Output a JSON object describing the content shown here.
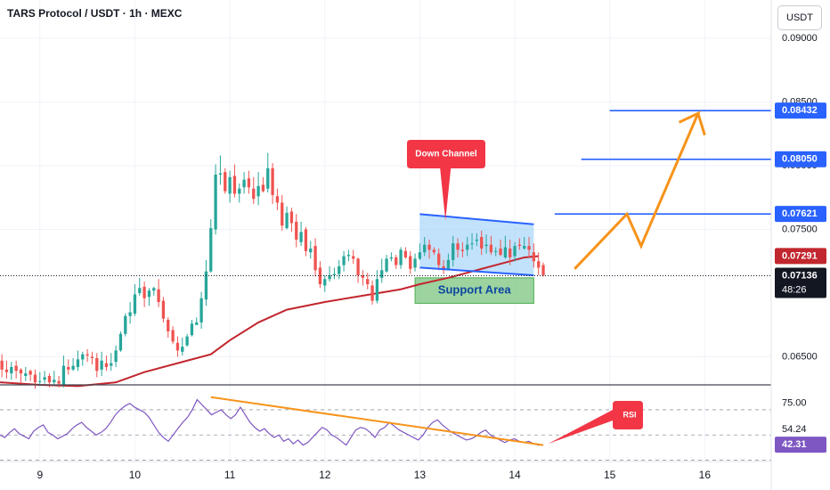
{
  "header": {
    "title": "TARS Protocol / USDT · 1h · MEXC",
    "currency_button": "USDT"
  },
  "colors": {
    "bull": "#26a69a",
    "bear": "#ef5350",
    "ma": "#c2262e",
    "level": "#2962ff",
    "arrow": "#f7931a",
    "rsi": "#7e57c2",
    "callout": "#f23645",
    "support_fill": "#7bc47f",
    "channel_fill": "#90caf9"
  },
  "chart_data": {
    "type": "candlestick",
    "title": "TARS Protocol / USDT · 1h · MEXC",
    "x_tick_labels": [
      "9",
      "10",
      "11",
      "12",
      "13",
      "14",
      "15",
      "16"
    ],
    "x_ticks": [
      9,
      10,
      11,
      12,
      13,
      14,
      15,
      16
    ],
    "xlim": [
      8.58,
      16.7
    ],
    "ylim": [
      0.0628,
      0.093
    ],
    "price_axis": {
      "tick_values": [
        0.065,
        0.075,
        0.08,
        0.085,
        0.09
      ],
      "tick_labels": [
        "0.06500",
        "0.07500",
        "0.08000",
        "0.08500",
        "0.09000"
      ]
    },
    "levels": [
      {
        "value": 0.07621,
        "label": "0.07621",
        "x_start": 14.42
      },
      {
        "value": 0.0805,
        "label": "0.08050",
        "x_start": 14.7
      },
      {
        "value": 0.08432,
        "label": "0.08432",
        "x_start": 15.0
      }
    ],
    "current_price": {
      "value": 0.07136,
      "label": "0.07136",
      "countdown": "48:26"
    },
    "ma": {
      "last_label": "0.07291",
      "last_value": 0.07291,
      "points": [
        [
          8.58,
          0.063
        ],
        [
          9.0,
          0.0628
        ],
        [
          9.4,
          0.0627
        ],
        [
          9.8,
          0.063
        ],
        [
          10.1,
          0.0638
        ],
        [
          10.5,
          0.0646
        ],
        [
          10.8,
          0.0652
        ],
        [
          11.0,
          0.0663
        ],
        [
          11.3,
          0.0677
        ],
        [
          11.6,
          0.0687
        ],
        [
          12.0,
          0.0693
        ],
        [
          12.4,
          0.0698
        ],
        [
          12.8,
          0.0703
        ],
        [
          13.0,
          0.0707
        ],
        [
          13.3,
          0.0712
        ],
        [
          13.6,
          0.0718
        ],
        [
          13.9,
          0.0724
        ],
        [
          14.1,
          0.0728
        ],
        [
          14.25,
          0.0729
        ]
      ]
    },
    "candles": [
      [
        8.6,
        0.0647,
        0.064,
        0.0652,
        0.0634
      ],
      [
        8.65,
        0.064,
        0.0638,
        0.0647,
        0.0633
      ],
      [
        8.7,
        0.0637,
        0.0642,
        0.0646,
        0.0632
      ],
      [
        8.75,
        0.0643,
        0.0639,
        0.0647,
        0.0633
      ],
      [
        8.8,
        0.064,
        0.0637,
        0.0641,
        0.0629
      ],
      [
        8.85,
        0.0635,
        0.0637,
        0.0642,
        0.0631
      ],
      [
        8.9,
        0.0639,
        0.0636,
        0.064,
        0.0631
      ],
      [
        8.95,
        0.0636,
        0.063,
        0.064,
        0.0625
      ],
      [
        9.0,
        0.0631,
        0.0631,
        0.0638,
        0.0627
      ],
      [
        9.05,
        0.0632,
        0.0634,
        0.0639,
        0.0629
      ],
      [
        9.1,
        0.0635,
        0.063,
        0.0637,
        0.0626
      ],
      [
        9.15,
        0.063,
        0.0632,
        0.0639,
        0.0627
      ],
      [
        9.2,
        0.0631,
        0.0629,
        0.0635,
        0.0626
      ],
      [
        9.25,
        0.0628,
        0.0643,
        0.0651,
        0.0626
      ],
      [
        9.3,
        0.0642,
        0.064,
        0.0648,
        0.0636
      ],
      [
        9.35,
        0.064,
        0.0643,
        0.0649,
        0.0639
      ],
      [
        9.4,
        0.0642,
        0.0648,
        0.0655,
        0.0639
      ],
      [
        9.45,
        0.0648,
        0.0652,
        0.0654,
        0.0643
      ],
      [
        9.5,
        0.0652,
        0.0651,
        0.0656,
        0.0646
      ],
      [
        9.55,
        0.065,
        0.0649,
        0.0654,
        0.0644
      ],
      [
        9.6,
        0.0649,
        0.0639,
        0.0653,
        0.0634
      ],
      [
        9.65,
        0.064,
        0.0647,
        0.0654,
        0.0635
      ],
      [
        9.7,
        0.0645,
        0.0642,
        0.0651,
        0.0639
      ],
      [
        9.75,
        0.0643,
        0.0645,
        0.0653,
        0.0639
      ],
      [
        9.8,
        0.0646,
        0.0655,
        0.0659,
        0.0642
      ],
      [
        9.85,
        0.0655,
        0.0668,
        0.067,
        0.0654
      ],
      [
        9.9,
        0.0668,
        0.0682,
        0.0684,
        0.0666
      ],
      [
        9.95,
        0.0682,
        0.0685,
        0.0693,
        0.0676
      ],
      [
        10.0,
        0.0684,
        0.0699,
        0.0707,
        0.0682
      ],
      [
        10.05,
        0.07,
        0.0704,
        0.0712,
        0.0698
      ],
      [
        10.1,
        0.0705,
        0.0696,
        0.0709,
        0.0689
      ],
      [
        10.15,
        0.0697,
        0.0702,
        0.0704,
        0.069
      ],
      [
        10.2,
        0.0702,
        0.0704,
        0.0705,
        0.0698
      ],
      [
        10.25,
        0.0703,
        0.0693,
        0.0711,
        0.0689
      ],
      [
        10.3,
        0.0694,
        0.068,
        0.0697,
        0.0677
      ],
      [
        10.35,
        0.0679,
        0.067,
        0.0681,
        0.0665
      ],
      [
        10.4,
        0.0671,
        0.0662,
        0.0674,
        0.066
      ],
      [
        10.45,
        0.0661,
        0.0655,
        0.0666,
        0.065
      ],
      [
        10.5,
        0.0654,
        0.0658,
        0.0665,
        0.0651
      ],
      [
        10.55,
        0.0659,
        0.0666,
        0.0668,
        0.0658
      ],
      [
        10.6,
        0.0667,
        0.0676,
        0.0679,
        0.0666
      ],
      [
        10.65,
        0.0675,
        0.0677,
        0.0681,
        0.0675
      ],
      [
        10.7,
        0.0677,
        0.0696,
        0.0701,
        0.0672
      ],
      [
        10.75,
        0.0695,
        0.0717,
        0.0726,
        0.069
      ],
      [
        10.8,
        0.0717,
        0.0751,
        0.0758,
        0.0716
      ],
      [
        10.85,
        0.075,
        0.0793,
        0.0801,
        0.0746
      ],
      [
        10.9,
        0.0793,
        0.0794,
        0.0808,
        0.0785
      ],
      [
        10.95,
        0.0795,
        0.078,
        0.0798,
        0.0778
      ],
      [
        11.0,
        0.0778,
        0.0791,
        0.0796,
        0.0771
      ],
      [
        11.05,
        0.0792,
        0.0778,
        0.0801,
        0.0775
      ],
      [
        11.1,
        0.0778,
        0.0782,
        0.0786,
        0.0771
      ],
      [
        11.15,
        0.0783,
        0.0789,
        0.0795,
        0.0778
      ],
      [
        11.2,
        0.079,
        0.0783,
        0.0796,
        0.0778
      ],
      [
        11.25,
        0.0782,
        0.0774,
        0.0791,
        0.077
      ],
      [
        11.3,
        0.0776,
        0.0784,
        0.0795,
        0.0769
      ],
      [
        11.35,
        0.0785,
        0.078,
        0.0791,
        0.0779
      ],
      [
        11.4,
        0.0782,
        0.0798,
        0.081,
        0.0779
      ],
      [
        11.45,
        0.0798,
        0.0777,
        0.0802,
        0.077
      ],
      [
        11.5,
        0.0776,
        0.0771,
        0.0782,
        0.0765
      ],
      [
        11.55,
        0.0771,
        0.0753,
        0.0777,
        0.0749
      ],
      [
        11.6,
        0.0751,
        0.0763,
        0.0768,
        0.075
      ],
      [
        11.65,
        0.0764,
        0.0755,
        0.0767,
        0.0748
      ],
      [
        11.7,
        0.0756,
        0.0742,
        0.0762,
        0.0736
      ],
      [
        11.75,
        0.074,
        0.0748,
        0.0756,
        0.0737
      ],
      [
        11.8,
        0.075,
        0.0733,
        0.0752,
        0.0729
      ],
      [
        11.85,
        0.0732,
        0.0735,
        0.0741,
        0.0727
      ],
      [
        11.9,
        0.0737,
        0.0718,
        0.0743,
        0.0713
      ],
      [
        11.95,
        0.072,
        0.0707,
        0.0725,
        0.0704
      ],
      [
        12.0,
        0.0706,
        0.0711,
        0.0714,
        0.0701
      ],
      [
        12.05,
        0.0711,
        0.0714,
        0.0721,
        0.0709
      ],
      [
        12.1,
        0.0714,
        0.0715,
        0.072,
        0.0711
      ],
      [
        12.15,
        0.0715,
        0.0721,
        0.0726,
        0.0711
      ],
      [
        12.2,
        0.0722,
        0.0729,
        0.0733,
        0.0717
      ],
      [
        12.25,
        0.0729,
        0.073,
        0.0734,
        0.0725
      ],
      [
        12.3,
        0.0729,
        0.0727,
        0.0734,
        0.0723
      ],
      [
        12.35,
        0.0727,
        0.0714,
        0.0728,
        0.0708
      ],
      [
        12.4,
        0.0714,
        0.0712,
        0.0718,
        0.0706
      ],
      [
        12.45,
        0.0711,
        0.0707,
        0.0716,
        0.0703
      ],
      [
        12.5,
        0.0706,
        0.0694,
        0.071,
        0.0691
      ],
      [
        12.55,
        0.0694,
        0.0711,
        0.0718,
        0.0692
      ],
      [
        12.6,
        0.0712,
        0.0718,
        0.0727,
        0.0708
      ],
      [
        12.65,
        0.0717,
        0.0727,
        0.073,
        0.0716
      ],
      [
        12.7,
        0.0727,
        0.0728,
        0.0732,
        0.0725
      ],
      [
        12.75,
        0.0728,
        0.0722,
        0.073,
        0.0719
      ],
      [
        12.8,
        0.0722,
        0.0734,
        0.0736,
        0.0719
      ],
      [
        12.85,
        0.0733,
        0.0728,
        0.0736,
        0.0727
      ],
      [
        12.9,
        0.0729,
        0.0719,
        0.0733,
        0.0715
      ],
      [
        12.95,
        0.072,
        0.0727,
        0.0731,
        0.0717
      ],
      [
        13.0,
        0.0727,
        0.0732,
        0.0739,
        0.0726
      ],
      [
        13.05,
        0.0732,
        0.0738,
        0.0744,
        0.0729
      ],
      [
        13.1,
        0.0738,
        0.0734,
        0.0742,
        0.0727
      ],
      [
        13.15,
        0.0734,
        0.0732,
        0.0736,
        0.073
      ],
      [
        13.2,
        0.0731,
        0.0722,
        0.0735,
        0.0718
      ],
      [
        13.25,
        0.0721,
        0.0718,
        0.0726,
        0.0715
      ],
      [
        13.3,
        0.0719,
        0.0726,
        0.0731,
        0.0718
      ],
      [
        13.35,
        0.0726,
        0.0739,
        0.0745,
        0.0721
      ],
      [
        13.4,
        0.0739,
        0.0734,
        0.0743,
        0.0728
      ],
      [
        13.45,
        0.0734,
        0.0733,
        0.074,
        0.0728
      ],
      [
        13.5,
        0.0734,
        0.0738,
        0.0744,
        0.0729
      ],
      [
        13.55,
        0.0739,
        0.0739,
        0.0747,
        0.0734
      ],
      [
        13.6,
        0.0741,
        0.0742,
        0.0747,
        0.0737
      ],
      [
        13.65,
        0.0744,
        0.0735,
        0.0749,
        0.073
      ],
      [
        13.7,
        0.0737,
        0.0738,
        0.0746,
        0.0731
      ],
      [
        13.75,
        0.0738,
        0.0732,
        0.0745,
        0.073
      ],
      [
        13.8,
        0.0733,
        0.0733,
        0.0736,
        0.0729
      ],
      [
        13.85,
        0.0735,
        0.073,
        0.0742,
        0.0729
      ],
      [
        13.9,
        0.0728,
        0.0736,
        0.0745,
        0.0727
      ],
      [
        13.95,
        0.0735,
        0.0728,
        0.0742,
        0.0722
      ],
      [
        14.0,
        0.0729,
        0.0737,
        0.074,
        0.0725
      ],
      [
        14.05,
        0.0738,
        0.0737,
        0.0743,
        0.0734
      ],
      [
        14.1,
        0.0735,
        0.0737,
        0.0744,
        0.0734
      ],
      [
        14.15,
        0.0737,
        0.0734,
        0.0744,
        0.0728
      ],
      [
        14.2,
        0.0732,
        0.0725,
        0.0739,
        0.072
      ],
      [
        14.25,
        0.0725,
        0.072,
        0.0732,
        0.0714
      ],
      [
        14.3,
        0.0722,
        0.0714,
        0.0724,
        0.0713
      ]
    ],
    "annotations": {
      "down_channel_label": "Down Channel",
      "support_area_label": "Support Area",
      "rsi_label": "RSI",
      "channel": {
        "x1": 13.0,
        "x2": 14.2,
        "top": [
          0.0762,
          0.0754
        ],
        "bottom": [
          0.072,
          0.0714
        ]
      },
      "support_area": {
        "x1": 12.95,
        "x2": 14.2,
        "y_top": 0.0712,
        "y_bottom": 0.0692
      },
      "projection_path": [
        [
          14.63,
          0.0719
        ],
        [
          15.18,
          0.0762
        ],
        [
          15.33,
          0.0737
        ],
        [
          15.93,
          0.0841
        ],
        [
          15.73,
          0.0834
        ],
        [
          15.93,
          0.0841
        ],
        [
          16.0,
          0.0824
        ]
      ]
    },
    "rsi": {
      "ylim": [
        29,
        89
      ],
      "tick_values": [
        75.0,
        54.24,
        41.89
      ],
      "tick_labels": [
        "75.00",
        "54.24",
        "41.89"
      ],
      "current_label": "42.31",
      "current_value": 42.31,
      "dashed_levels": [
        70,
        50,
        30
      ],
      "trendline": [
        [
          10.8,
          80.0
        ],
        [
          14.3,
          42.0
        ]
      ],
      "values": [
        50,
        48,
        52,
        55,
        51,
        49,
        47,
        53,
        56,
        58,
        52,
        50,
        47,
        49,
        51,
        55,
        58,
        60,
        56,
        53,
        50,
        52,
        55,
        60,
        66,
        70,
        73,
        75,
        72,
        70,
        68,
        64,
        58,
        52,
        48,
        45,
        50,
        55,
        60,
        64,
        70,
        78,
        74,
        70,
        66,
        68,
        70,
        66,
        63,
        66,
        72,
        66,
        60,
        56,
        53,
        55,
        51,
        48,
        50,
        45,
        47,
        43,
        46,
        42,
        44,
        48,
        52,
        56,
        54,
        50,
        48,
        45,
        42,
        48,
        54,
        56,
        55,
        52,
        48,
        54,
        56,
        60,
        57,
        54,
        52,
        50,
        48,
        46,
        50,
        56,
        60,
        62,
        58,
        55,
        52,
        50,
        48,
        46,
        47,
        49,
        52,
        54,
        50,
        48,
        46,
        44,
        46,
        47,
        45,
        44,
        45,
        43,
        42,
        42.31
      ]
    }
  }
}
